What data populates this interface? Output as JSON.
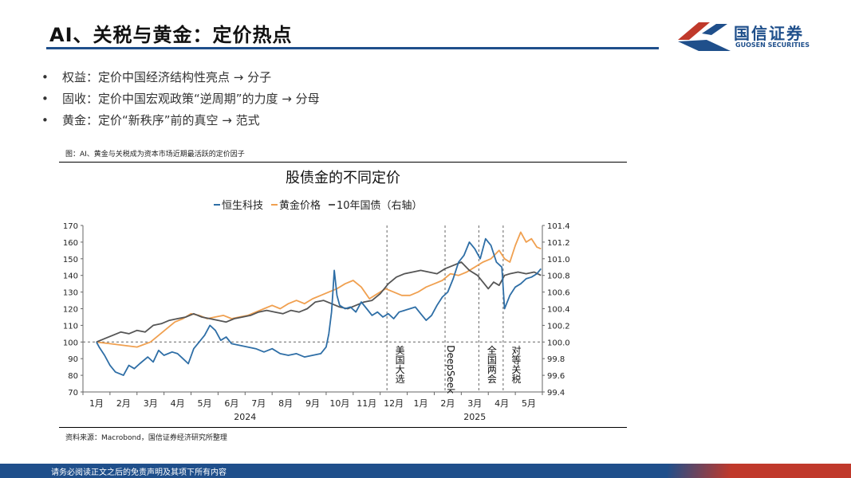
{
  "header": {
    "title": "AI、关税与黄金：定价热点",
    "logo_cn": "国信证券",
    "logo_en": "GUOSEN SECURITIES"
  },
  "bullets": [
    {
      "marker": "•",
      "text": "权益：定价中国经济结构性亮点 → 分子"
    },
    {
      "marker": "•",
      "text": "固收：定价中国宏观政策“逆周期”的力度 → 分母"
    },
    {
      "marker": "•",
      "text": "黄金：定价“新秩序”前的真空 → 范式"
    }
  ],
  "figure_caption": "图：AI、黄金与关税成为资本市场近期最活跃的定价因子",
  "source": "资料来源：Macrobond，国信证券经济研究所整理",
  "footer": {
    "disclaimer": "请务必阅读正文之后的免责声明及其项下所有内容"
  },
  "colors": {
    "brand_blue": "#1f4f8b",
    "brand_red": "#c0392b",
    "hstech": "#2e6ea6",
    "gold": "#f0a050",
    "bond": "#555555"
  },
  "chart_data": {
    "type": "line",
    "title": "股债金的不同定价",
    "x_months": [
      "1月",
      "2月",
      "3月",
      "4月",
      "5月",
      "6月",
      "7月",
      "8月",
      "9月",
      "10月",
      "11月",
      "12月",
      "1月",
      "2月",
      "3月",
      "4月",
      "5月"
    ],
    "x_years": [
      {
        "label": "2024",
        "month_index": 5.5
      },
      {
        "label": "2025",
        "month_index": 14
      }
    ],
    "left_axis": {
      "min": 70,
      "max": 170,
      "ticks": [
        70,
        80,
        90,
        100,
        110,
        120,
        130,
        140,
        150,
        160,
        170
      ]
    },
    "right_axis": {
      "min": 99.4,
      "max": 101.4,
      "ticks": [
        "99.4",
        "99.6",
        "99.8",
        "100.0",
        "100.2",
        "100.4",
        "100.6",
        "100.8",
        "101.0",
        "101.2",
        "101.4"
      ]
    },
    "reference_line_left": 100,
    "annotations": [
      {
        "label": "美国大选",
        "month_index": 10.75
      },
      {
        "label": "DeepSeek",
        "month_index": 12.9
      },
      {
        "label": "全国两会",
        "month_index": 14.15
      },
      {
        "label": "对等关税",
        "month_index": 15.05
      }
    ],
    "series": [
      {
        "name": "恒生科技",
        "axis": "left",
        "points": [
          [
            0,
            100
          ],
          [
            0.1,
            97
          ],
          [
            0.3,
            92
          ],
          [
            0.5,
            86
          ],
          [
            0.7,
            82
          ],
          [
            1.0,
            80
          ],
          [
            1.2,
            86
          ],
          [
            1.4,
            84
          ],
          [
            1.6,
            87
          ],
          [
            1.9,
            91
          ],
          [
            2.1,
            88
          ],
          [
            2.3,
            95
          ],
          [
            2.5,
            92
          ],
          [
            2.8,
            94
          ],
          [
            3.0,
            93
          ],
          [
            3.2,
            90
          ],
          [
            3.4,
            87
          ],
          [
            3.6,
            96
          ],
          [
            3.8,
            100
          ],
          [
            4.0,
            104
          ],
          [
            4.2,
            110
          ],
          [
            4.4,
            107
          ],
          [
            4.6,
            101
          ],
          [
            4.8,
            103
          ],
          [
            5.0,
            99
          ],
          [
            5.3,
            98
          ],
          [
            5.6,
            97
          ],
          [
            5.9,
            96
          ],
          [
            6.2,
            94
          ],
          [
            6.5,
            96
          ],
          [
            6.8,
            93
          ],
          [
            7.1,
            92
          ],
          [
            7.4,
            93
          ],
          [
            7.7,
            91
          ],
          [
            8.0,
            92
          ],
          [
            8.3,
            93
          ],
          [
            8.5,
            97
          ],
          [
            8.6,
            105
          ],
          [
            8.7,
            118
          ],
          [
            8.75,
            130
          ],
          [
            8.8,
            143
          ],
          [
            8.9,
            128
          ],
          [
            9.0,
            122
          ],
          [
            9.2,
            120
          ],
          [
            9.4,
            121
          ],
          [
            9.6,
            118
          ],
          [
            9.8,
            124
          ],
          [
            10.0,
            120
          ],
          [
            10.2,
            116
          ],
          [
            10.4,
            118
          ],
          [
            10.6,
            115
          ],
          [
            10.8,
            117
          ],
          [
            11.0,
            114
          ],
          [
            11.2,
            118
          ],
          [
            11.4,
            119
          ],
          [
            11.6,
            120
          ],
          [
            11.8,
            121
          ],
          [
            12.0,
            117
          ],
          [
            12.2,
            113
          ],
          [
            12.4,
            116
          ],
          [
            12.6,
            122
          ],
          [
            12.8,
            127
          ],
          [
            13.0,
            130
          ],
          [
            13.2,
            138
          ],
          [
            13.4,
            148
          ],
          [
            13.6,
            152
          ],
          [
            13.8,
            160
          ],
          [
            14.0,
            156
          ],
          [
            14.2,
            150
          ],
          [
            14.4,
            162
          ],
          [
            14.6,
            158
          ],
          [
            14.8,
            148
          ],
          [
            15.0,
            145
          ],
          [
            15.1,
            120
          ],
          [
            15.3,
            128
          ],
          [
            15.5,
            133
          ],
          [
            15.7,
            135
          ],
          [
            15.9,
            138
          ],
          [
            16.1,
            139
          ],
          [
            16.3,
            141
          ],
          [
            16.45,
            144
          ]
        ]
      },
      {
        "name": "黄金价格",
        "axis": "left",
        "points": [
          [
            0,
            100
          ],
          [
            0.5,
            99
          ],
          [
            1.0,
            98
          ],
          [
            1.5,
            97
          ],
          [
            2.0,
            100
          ],
          [
            2.3,
            104
          ],
          [
            2.6,
            108
          ],
          [
            2.9,
            112
          ],
          [
            3.2,
            114
          ],
          [
            3.5,
            117
          ],
          [
            3.8,
            116
          ],
          [
            4.1,
            114
          ],
          [
            4.4,
            115
          ],
          [
            4.7,
            116
          ],
          [
            5.0,
            114
          ],
          [
            5.3,
            115
          ],
          [
            5.6,
            116
          ],
          [
            5.9,
            118
          ],
          [
            6.2,
            120
          ],
          [
            6.5,
            122
          ],
          [
            6.8,
            120
          ],
          [
            7.1,
            123
          ],
          [
            7.4,
            125
          ],
          [
            7.7,
            123
          ],
          [
            8.0,
            126
          ],
          [
            8.3,
            128
          ],
          [
            8.6,
            130
          ],
          [
            8.9,
            132
          ],
          [
            9.2,
            135
          ],
          [
            9.5,
            137
          ],
          [
            9.8,
            133
          ],
          [
            10.1,
            126
          ],
          [
            10.4,
            129
          ],
          [
            10.7,
            132
          ],
          [
            11.0,
            130
          ],
          [
            11.3,
            128
          ],
          [
            11.6,
            128
          ],
          [
            11.9,
            130
          ],
          [
            12.2,
            133
          ],
          [
            12.5,
            135
          ],
          [
            12.8,
            137
          ],
          [
            13.1,
            141
          ],
          [
            13.4,
            140
          ],
          [
            13.7,
            142
          ],
          [
            14.0,
            145
          ],
          [
            14.3,
            148
          ],
          [
            14.6,
            150
          ],
          [
            14.9,
            155
          ],
          [
            15.1,
            150
          ],
          [
            15.3,
            148
          ],
          [
            15.5,
            158
          ],
          [
            15.7,
            166
          ],
          [
            15.9,
            160
          ],
          [
            16.1,
            162
          ],
          [
            16.3,
            157
          ],
          [
            16.45,
            156
          ]
        ]
      },
      {
        "name": "10年国债（右轴）",
        "axis": "right",
        "points": [
          [
            0,
            100.0
          ],
          [
            0.3,
            100.04
          ],
          [
            0.6,
            100.08
          ],
          [
            0.9,
            100.12
          ],
          [
            1.2,
            100.1
          ],
          [
            1.5,
            100.14
          ],
          [
            1.8,
            100.12
          ],
          [
            2.1,
            100.2
          ],
          [
            2.4,
            100.22
          ],
          [
            2.7,
            100.26
          ],
          [
            3.0,
            100.28
          ],
          [
            3.3,
            100.3
          ],
          [
            3.6,
            100.34
          ],
          [
            3.9,
            100.3
          ],
          [
            4.2,
            100.28
          ],
          [
            4.5,
            100.26
          ],
          [
            4.8,
            100.24
          ],
          [
            5.1,
            100.28
          ],
          [
            5.4,
            100.3
          ],
          [
            5.7,
            100.32
          ],
          [
            6.0,
            100.36
          ],
          [
            6.3,
            100.38
          ],
          [
            6.6,
            100.36
          ],
          [
            6.9,
            100.34
          ],
          [
            7.2,
            100.38
          ],
          [
            7.5,
            100.36
          ],
          [
            7.8,
            100.4
          ],
          [
            8.1,
            100.48
          ],
          [
            8.4,
            100.5
          ],
          [
            8.7,
            100.46
          ],
          [
            9.0,
            100.42
          ],
          [
            9.3,
            100.4
          ],
          [
            9.6,
            100.44
          ],
          [
            9.9,
            100.48
          ],
          [
            10.2,
            100.5
          ],
          [
            10.5,
            100.58
          ],
          [
            10.8,
            100.7
          ],
          [
            11.1,
            100.78
          ],
          [
            11.4,
            100.82
          ],
          [
            11.7,
            100.84
          ],
          [
            12.0,
            100.86
          ],
          [
            12.3,
            100.84
          ],
          [
            12.6,
            100.82
          ],
          [
            12.9,
            100.88
          ],
          [
            13.2,
            100.92
          ],
          [
            13.5,
            100.96
          ],
          [
            13.8,
            100.86
          ],
          [
            14.1,
            100.8
          ],
          [
            14.3,
            100.72
          ],
          [
            14.5,
            100.64
          ],
          [
            14.7,
            100.72
          ],
          [
            14.9,
            100.68
          ],
          [
            15.1,
            100.8
          ],
          [
            15.3,
            100.82
          ],
          [
            15.6,
            100.84
          ],
          [
            15.9,
            100.82
          ],
          [
            16.2,
            100.84
          ],
          [
            16.45,
            100.8
          ]
        ]
      }
    ]
  }
}
